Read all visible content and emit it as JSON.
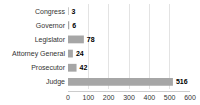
{
  "chart_data": {
    "type": "bar",
    "orientation": "horizontal",
    "categories": [
      "Congress",
      "Governor",
      "Legislator",
      "Attorney General",
      "Prosecutor",
      "Judge"
    ],
    "values": [
      3,
      6,
      78,
      24,
      42,
      516
    ],
    "color": "#a6a6a6",
    "xlim": [
      0,
      600
    ],
    "xticks": [
      0,
      100,
      200,
      300,
      400,
      500,
      600
    ],
    "grid": true,
    "data_labels": true
  }
}
